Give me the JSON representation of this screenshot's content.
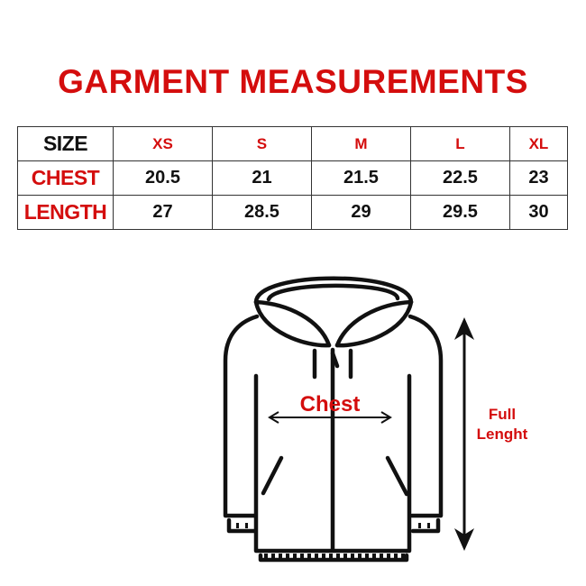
{
  "title": "GARMENT MEASUREMENTS",
  "table": {
    "header": [
      "SIZE",
      "XS",
      "S",
      "M",
      "L",
      "XL"
    ],
    "rows": [
      {
        "label": "CHEST",
        "values": [
          "20.5",
          "21",
          "21.5",
          "22.5",
          "23"
        ]
      },
      {
        "label": "LENGTH",
        "values": [
          "27",
          "28.5",
          "29",
          "29.5",
          "30"
        ]
      }
    ]
  },
  "diagram": {
    "chest_label": "Chest",
    "length_label_line1": "Full",
    "length_label_line2": "Lenght"
  },
  "colors": {
    "accent": "#d40d0d",
    "text": "#111111"
  }
}
